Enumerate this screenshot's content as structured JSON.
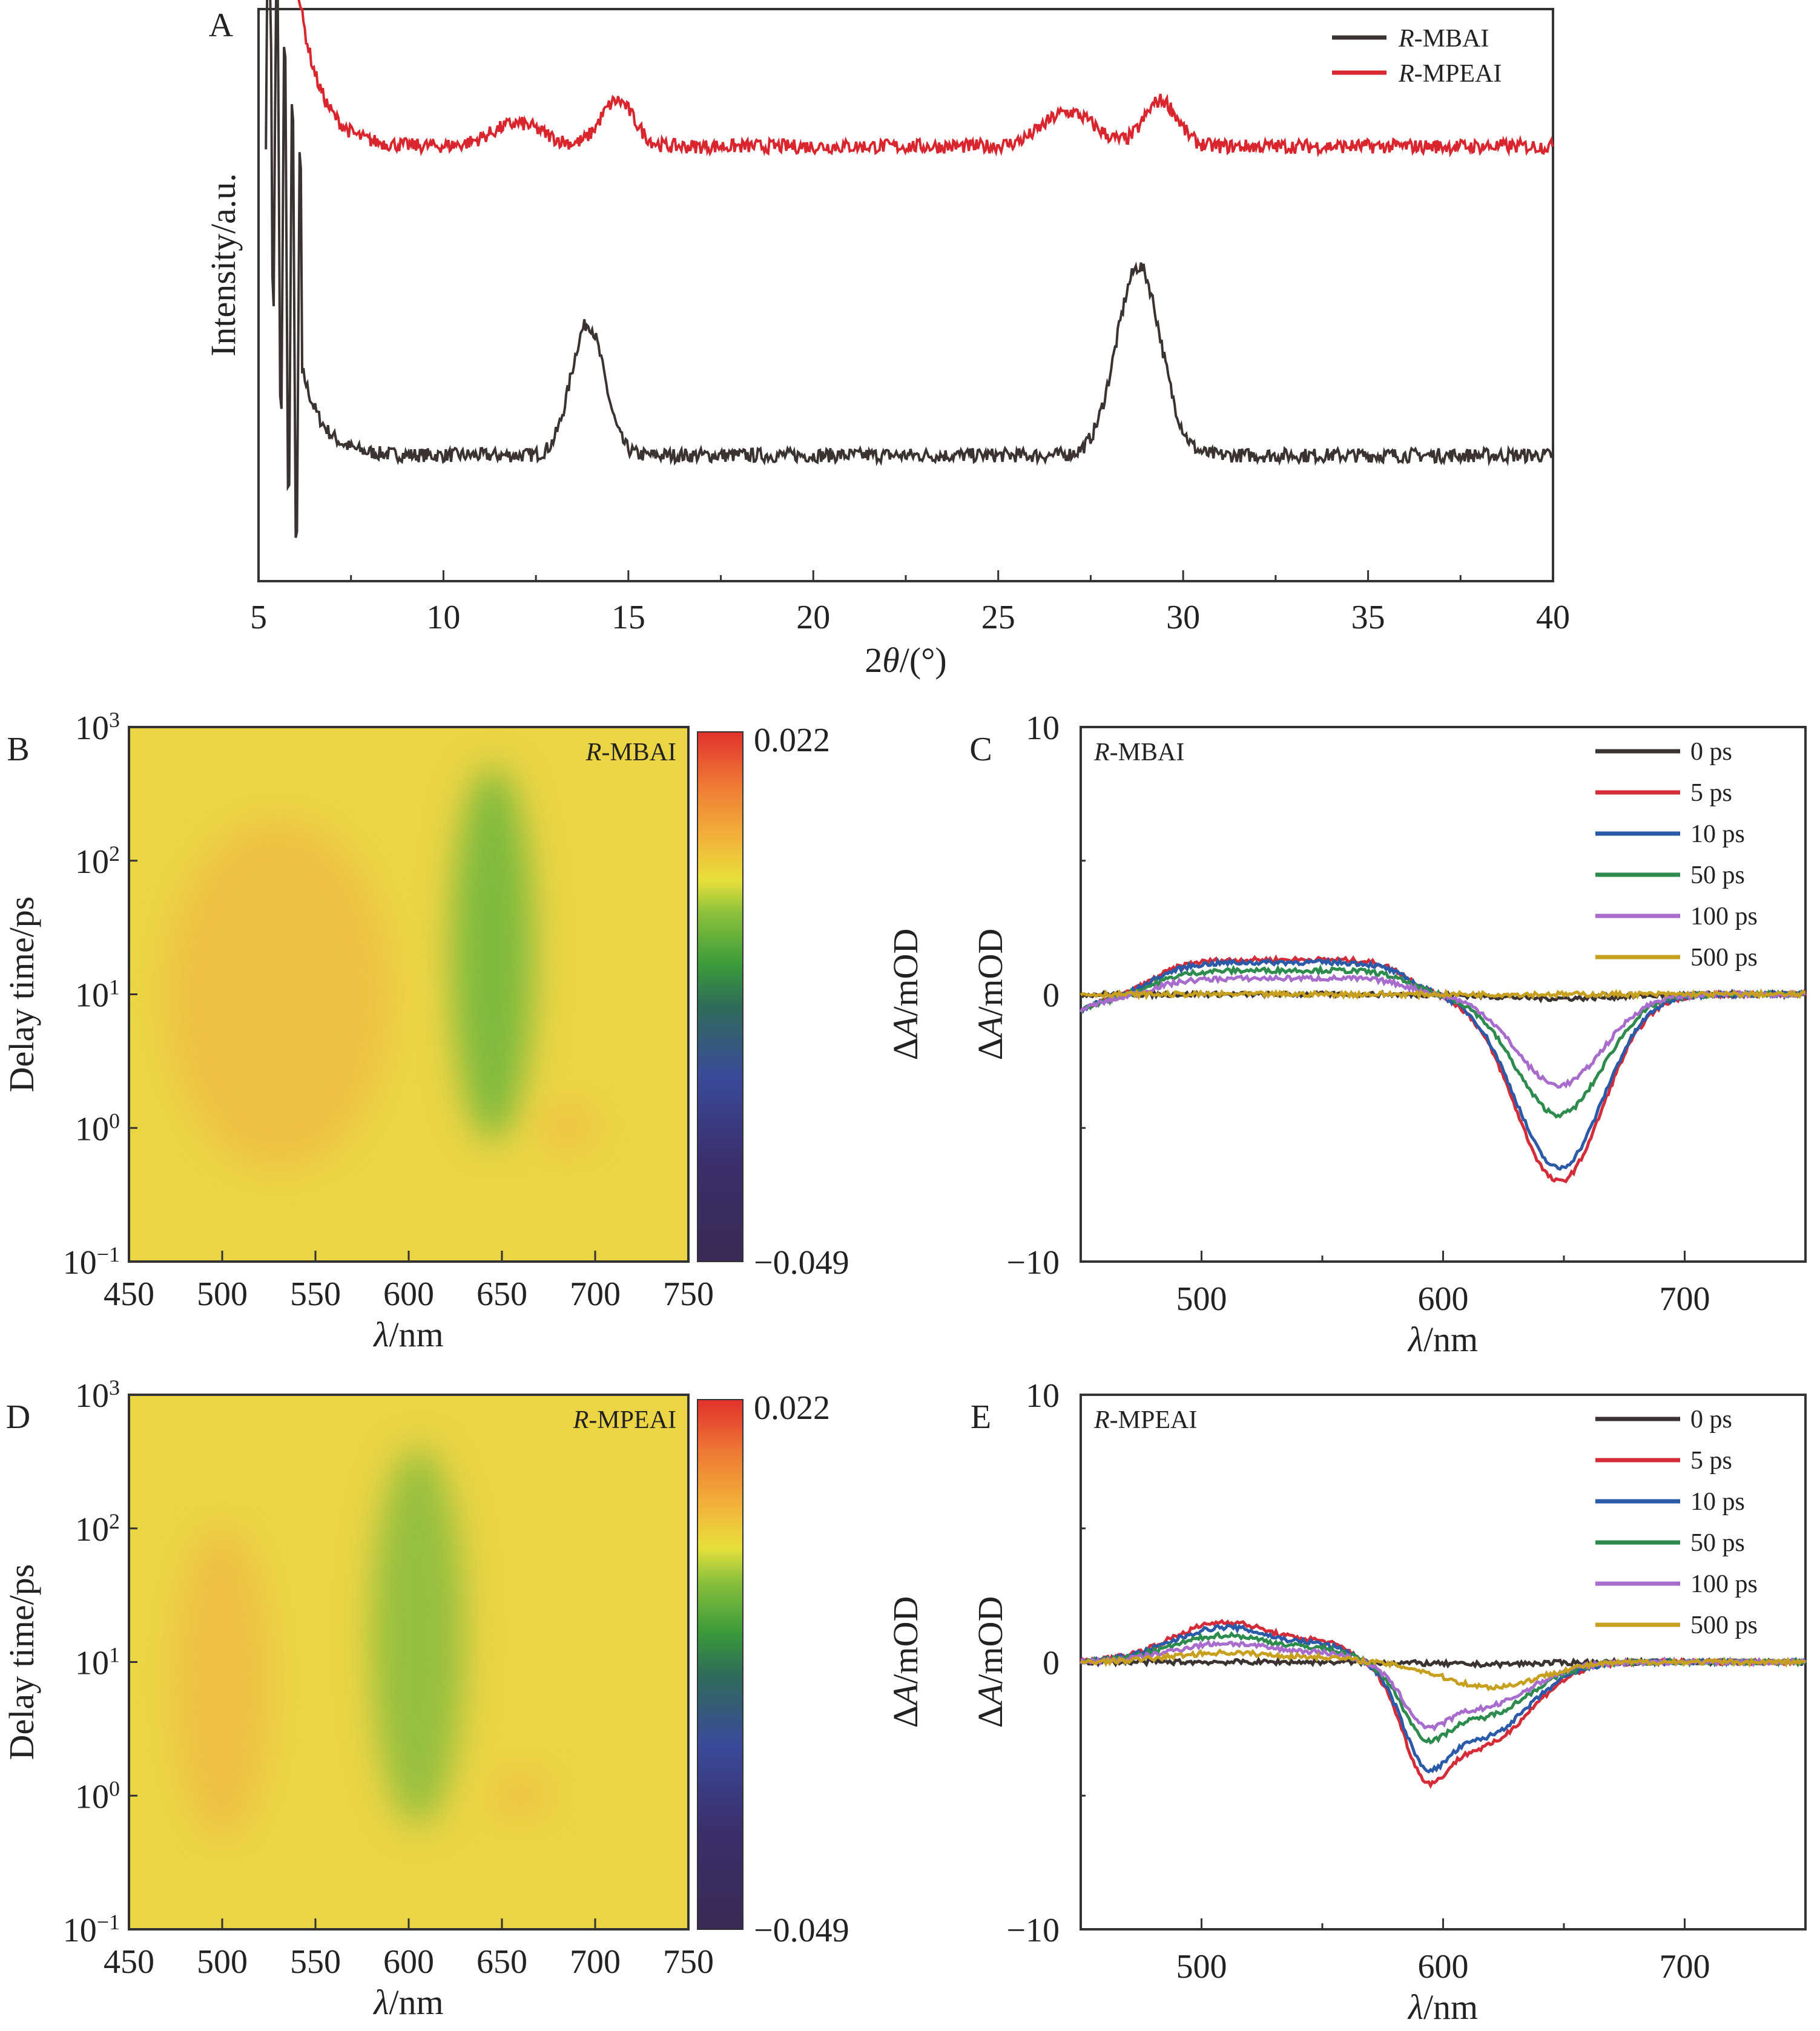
{
  "chart_data": [
    {
      "panel": "A",
      "type": "line",
      "xlabel": "2θ/(°)",
      "ylabel": "Intensity/a.u.",
      "xlim": [
        5,
        40
      ],
      "xticks": [
        5,
        10,
        15,
        20,
        25,
        30,
        35,
        40
      ],
      "yticks": [],
      "legend_position": "top-right",
      "series": [
        {
          "name": "R-MBAI",
          "color": "#3a3331",
          "baseline": 0.22,
          "peaks": [
            [
              13.9,
              0.23,
              0.45
            ],
            [
              28.8,
              0.33,
              0.6
            ]
          ],
          "low_angle_intensity": 1.3
        },
        {
          "name": "R-MPEAI",
          "color": "#d9262e",
          "baseline": 0.76,
          "peaks": [
            [
              12.0,
              0.04,
              0.7
            ],
            [
              14.7,
              0.08,
              0.45
            ],
            [
              26.9,
              0.06,
              0.7
            ],
            [
              29.4,
              0.08,
              0.45
            ]
          ],
          "low_angle_intensity": 1.05
        }
      ]
    },
    {
      "panel": "B",
      "type": "heatmap",
      "label": "R-MBAI",
      "xlabel": "λ/nm",
      "ylabel": "Delay time/ps",
      "colorbar_label": "ΔA/mOD",
      "xlim": [
        450,
        750
      ],
      "xticks": [
        450,
        500,
        550,
        600,
        650,
        700,
        750
      ],
      "ylim_log10": [
        -1,
        3
      ],
      "yticks": [
        "10^-1",
        "10^0",
        "10^1",
        "10^2",
        "10^3"
      ],
      "clim": [
        -0.049,
        0.022
      ],
      "colorbar_ticks": [
        "0.022",
        "-0.049"
      ],
      "features": [
        {
          "kind": "bleach",
          "center_nm": 645,
          "width_nm": 22,
          "from_ps": 0.8,
          "to_ps": 500,
          "strength": 0.7
        },
        {
          "kind": "absorption",
          "center_nm": 530,
          "width_nm": 60,
          "from_ps": 0.5,
          "to_ps": 200,
          "strength": 0.35
        },
        {
          "kind": "absorption",
          "center_nm": 685,
          "width_nm": 15,
          "from_ps": 0.7,
          "to_ps": 1.5,
          "strength": 0.3
        }
      ]
    },
    {
      "panel": "C",
      "type": "line",
      "label": "R-MBAI",
      "xlabel": "λ/nm",
      "ylabel": "ΔA/mOD",
      "xlim": [
        450,
        750
      ],
      "ylim": [
        -10,
        10
      ],
      "xticks": [
        500,
        600,
        700
      ],
      "yticks": [
        -10,
        0,
        10
      ],
      "legend_position": "top-right",
      "series": [
        {
          "name": "0 ps",
          "color": "#3a3331",
          "pia": 0.0,
          "bleach_center": 648,
          "bleach_depth": 0.15,
          "bleach_width": 25,
          "dip2": 0
        },
        {
          "name": "5 ps",
          "color": "#d42c38",
          "pia": 1.3,
          "bleach_center": 648,
          "bleach_depth": 7.0,
          "bleach_width": 18,
          "dip2": 0
        },
        {
          "name": "10 ps",
          "color": "#2a5aa8",
          "pia": 1.2,
          "bleach_center": 648,
          "bleach_depth": 6.5,
          "bleach_width": 18,
          "dip2": 0
        },
        {
          "name": "50 ps",
          "color": "#2e8b4e",
          "pia": 0.9,
          "bleach_center": 648,
          "bleach_depth": 4.5,
          "bleach_width": 18,
          "dip2": 0
        },
        {
          "name": "100 ps",
          "color": "#a86ccc",
          "pia": 0.6,
          "bleach_center": 648,
          "bleach_depth": 3.4,
          "bleach_width": 18,
          "dip2": 0
        },
        {
          "name": "500 ps",
          "color": "#c8a020",
          "pia": 0.0,
          "bleach_center": 648,
          "bleach_depth": 0.0,
          "bleach_width": 18,
          "dip2": 0
        }
      ]
    },
    {
      "panel": "D",
      "type": "heatmap",
      "label": "R-MPEAI",
      "xlabel": "λ/nm",
      "ylabel": "Delay time/ps",
      "colorbar_label": "ΔA/mOD",
      "xlim": [
        450,
        750
      ],
      "xticks": [
        450,
        500,
        550,
        600,
        650,
        700,
        750
      ],
      "ylim_log10": [
        -1,
        3
      ],
      "yticks": [
        "10^-1",
        "10^0",
        "10^1",
        "10^2",
        "10^3"
      ],
      "clim": [
        -0.049,
        0.022
      ],
      "colorbar_ticks": [
        "0.022",
        "-0.049"
      ],
      "features": [
        {
          "kind": "bleach",
          "center_nm": 605,
          "width_nm": 25,
          "from_ps": 0.6,
          "to_ps": 400,
          "strength": 0.45
        },
        {
          "kind": "absorption",
          "center_nm": 500,
          "width_nm": 25,
          "from_ps": 0.5,
          "to_ps": 100,
          "strength": 0.4
        },
        {
          "kind": "absorption",
          "center_nm": 660,
          "width_nm": 15,
          "from_ps": 0.7,
          "to_ps": 1.5,
          "strength": 0.3
        }
      ]
    },
    {
      "panel": "E",
      "type": "line",
      "label": "R-MPEAI",
      "xlabel": "λ/nm",
      "ylabel": "ΔA/mOD",
      "xlim": [
        450,
        750
      ],
      "ylim": [
        -10,
        10
      ],
      "xticks": [
        500,
        600,
        700
      ],
      "yticks": [
        -10,
        0,
        10
      ],
      "legend_position": "top-right",
      "series": [
        {
          "name": "0 ps",
          "color": "#3a3331",
          "pia": 0.0,
          "bleach_center": 615,
          "bleach_depth": 0.1,
          "bleach_width": 22,
          "dip2": 0
        },
        {
          "name": "5 ps",
          "color": "#d42c38",
          "pia": 1.5,
          "bleach_center": 615,
          "bleach_depth": 3.7,
          "bleach_width": 20,
          "dip2": 1
        },
        {
          "name": "10 ps",
          "color": "#2a5aa8",
          "pia": 1.3,
          "bleach_center": 615,
          "bleach_depth": 3.3,
          "bleach_width": 20,
          "dip2": 1
        },
        {
          "name": "50 ps",
          "color": "#2e8b4e",
          "pia": 1.0,
          "bleach_center": 615,
          "bleach_depth": 2.4,
          "bleach_width": 20,
          "dip2": 1
        },
        {
          "name": "100 ps",
          "color": "#a86ccc",
          "pia": 0.7,
          "bleach_center": 615,
          "bleach_depth": 2.0,
          "bleach_width": 20,
          "dip2": 1
        },
        {
          "name": "500 ps",
          "color": "#c8a020",
          "pia": 0.35,
          "bleach_center": 620,
          "bleach_depth": 1.1,
          "bleach_width": 20,
          "dip2": 0
        }
      ]
    }
  ],
  "labels": {
    "A": "A",
    "B": "B",
    "C": "C",
    "D": "D",
    "E": "E"
  }
}
